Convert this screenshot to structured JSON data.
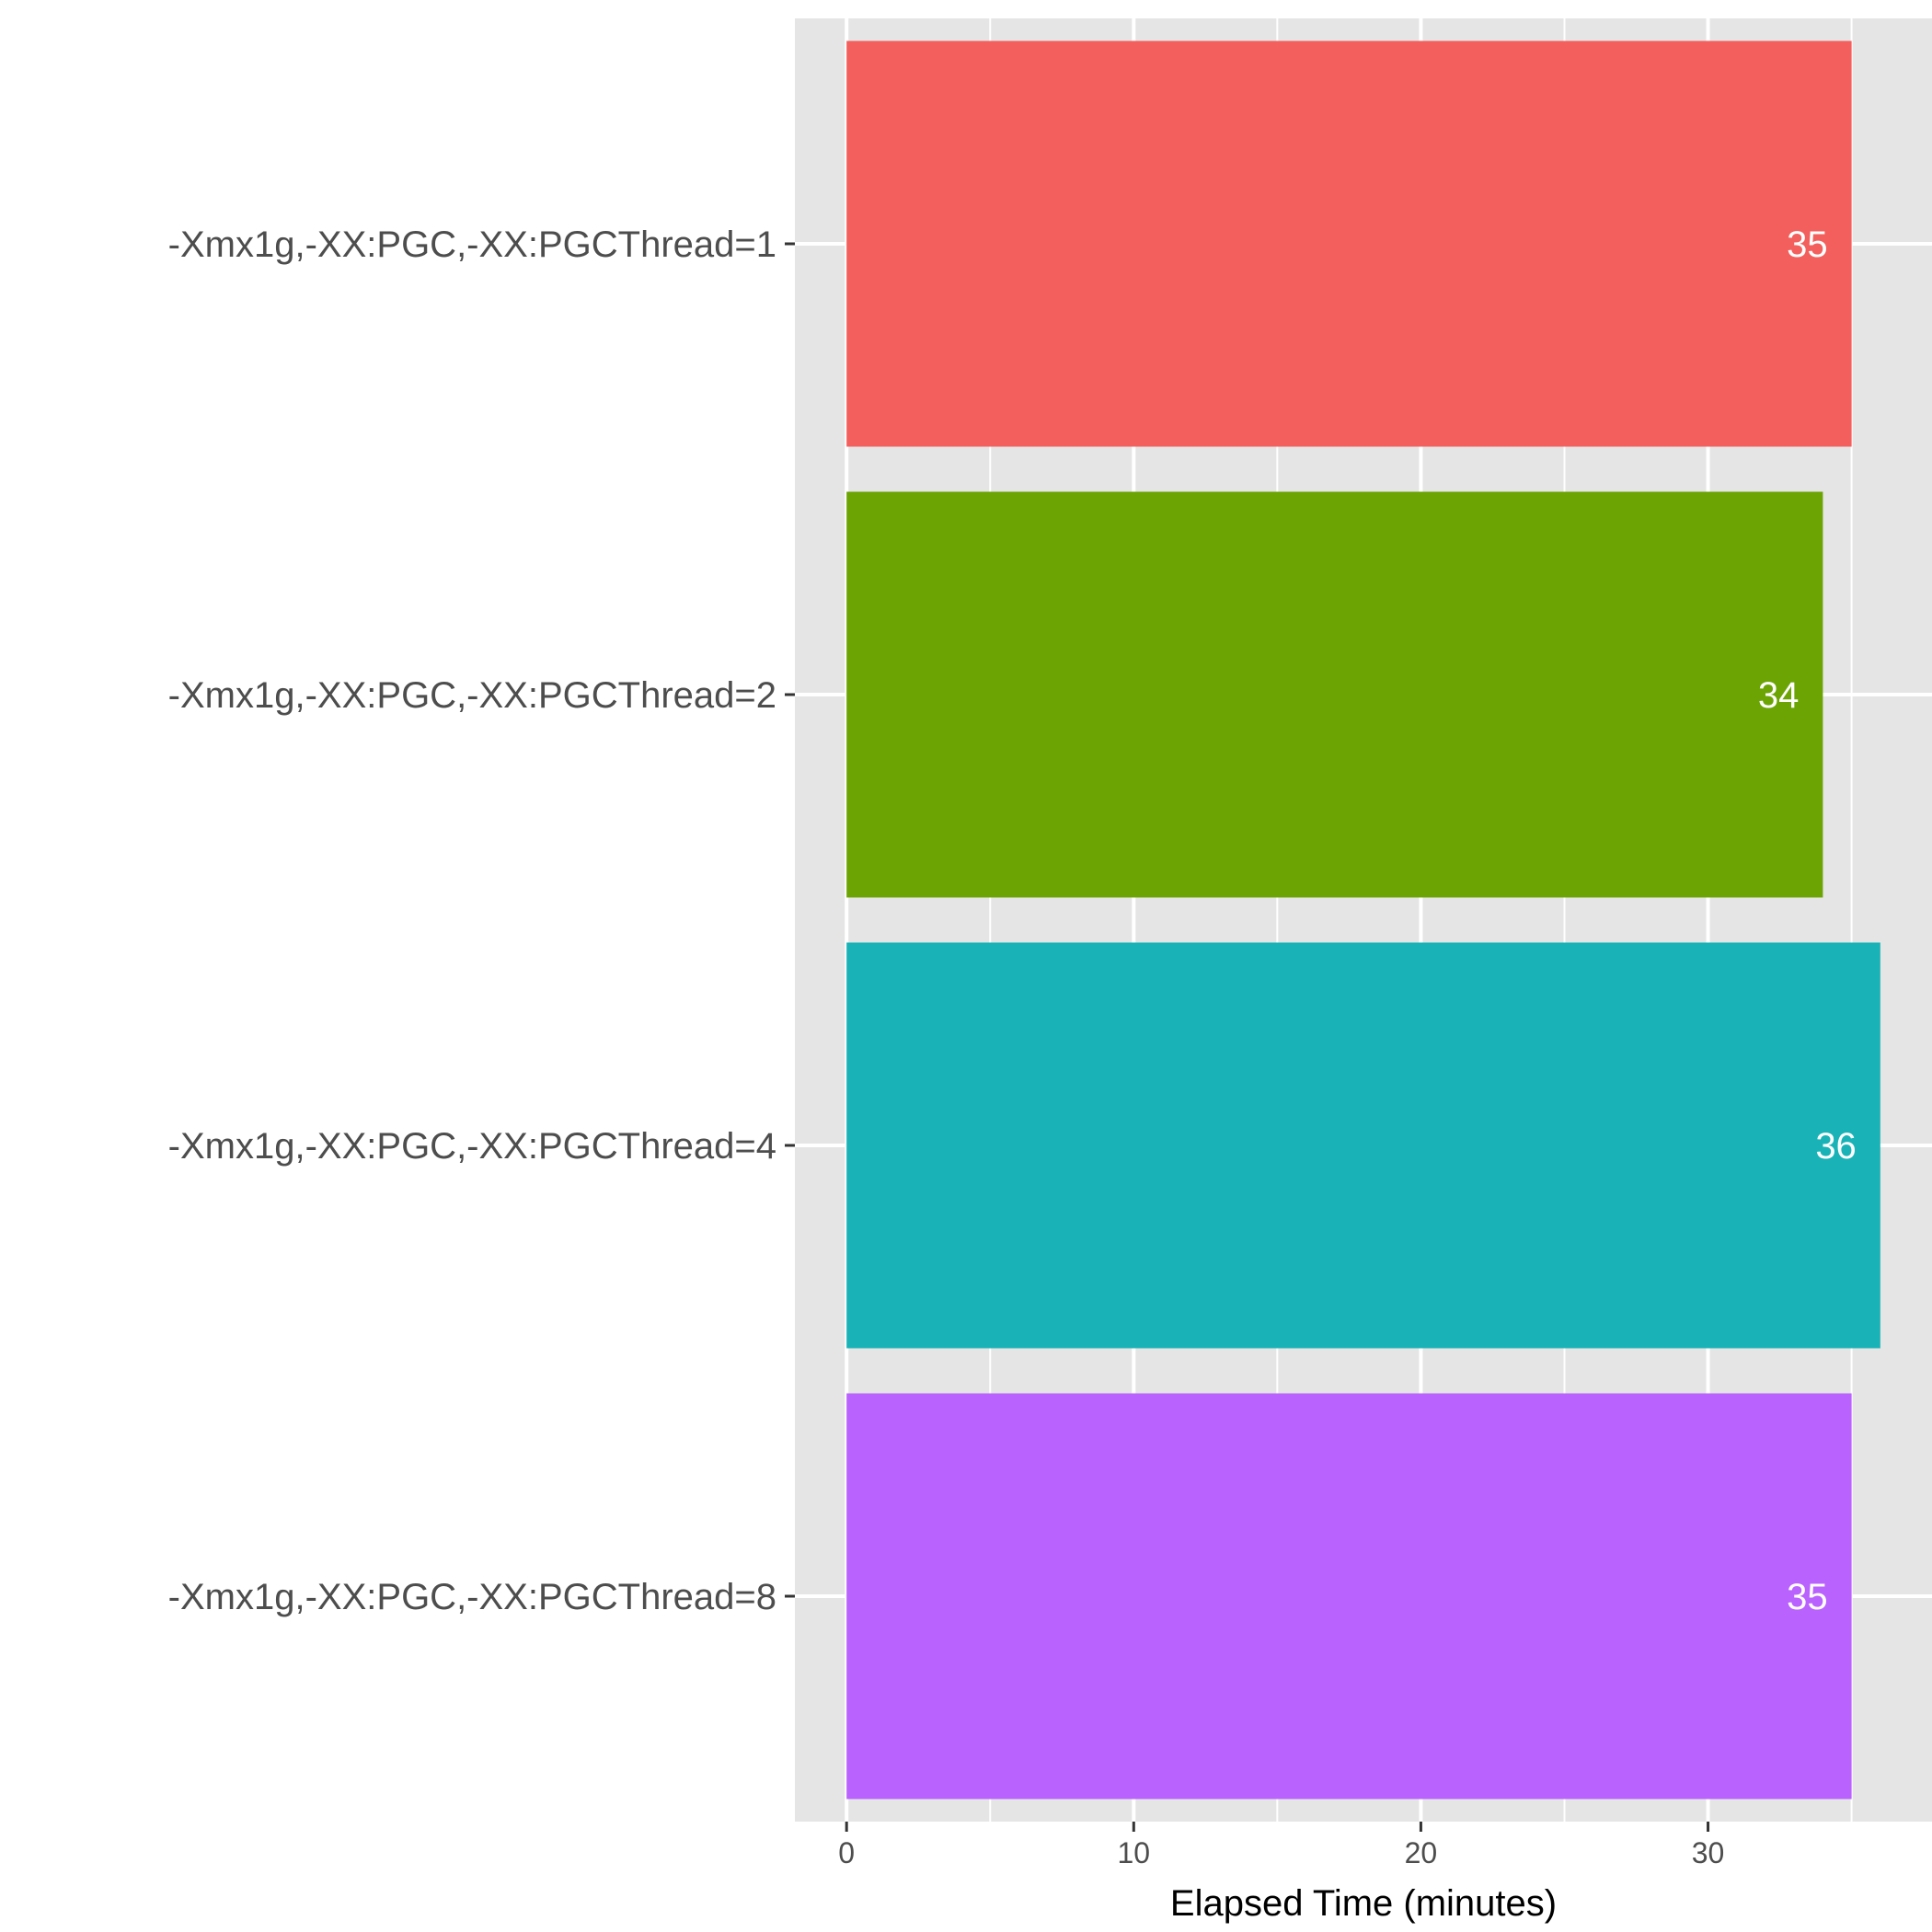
{
  "chart_data": {
    "type": "bar",
    "orientation": "horizontal",
    "categories": [
      "-Xmx1g,-XX:PGC,-XX:PGCThread=1",
      "-Xmx1g,-XX:PGC,-XX:PGCThread=2",
      "-Xmx1g,-XX:PGC,-XX:PGCThread=4",
      "-Xmx1g,-XX:PGC,-XX:PGCThread=8"
    ],
    "values": [
      35,
      34,
      36,
      35
    ],
    "value_labels": [
      "35",
      "34",
      "36",
      "35"
    ],
    "colors": [
      "#F25F5C",
      "#6CA404",
      "#19B3B7",
      "#B962FE"
    ],
    "title": "",
    "xlabel": "Elapsed Time (minutes)",
    "ylabel": "",
    "xlim": [
      -1.8,
      37.8
    ],
    "x_ticks": [
      0,
      10,
      20,
      30
    ],
    "x_tick_labels": [
      "0",
      "10",
      "20",
      "30"
    ],
    "x_minor_ticks": [
      5,
      15,
      25,
      35
    ],
    "grid": true,
    "legend": "none",
    "panel_background": "#E5E5E5",
    "gridline_color": "#FFFFFF",
    "value_label_color": "#FFFFFF"
  }
}
